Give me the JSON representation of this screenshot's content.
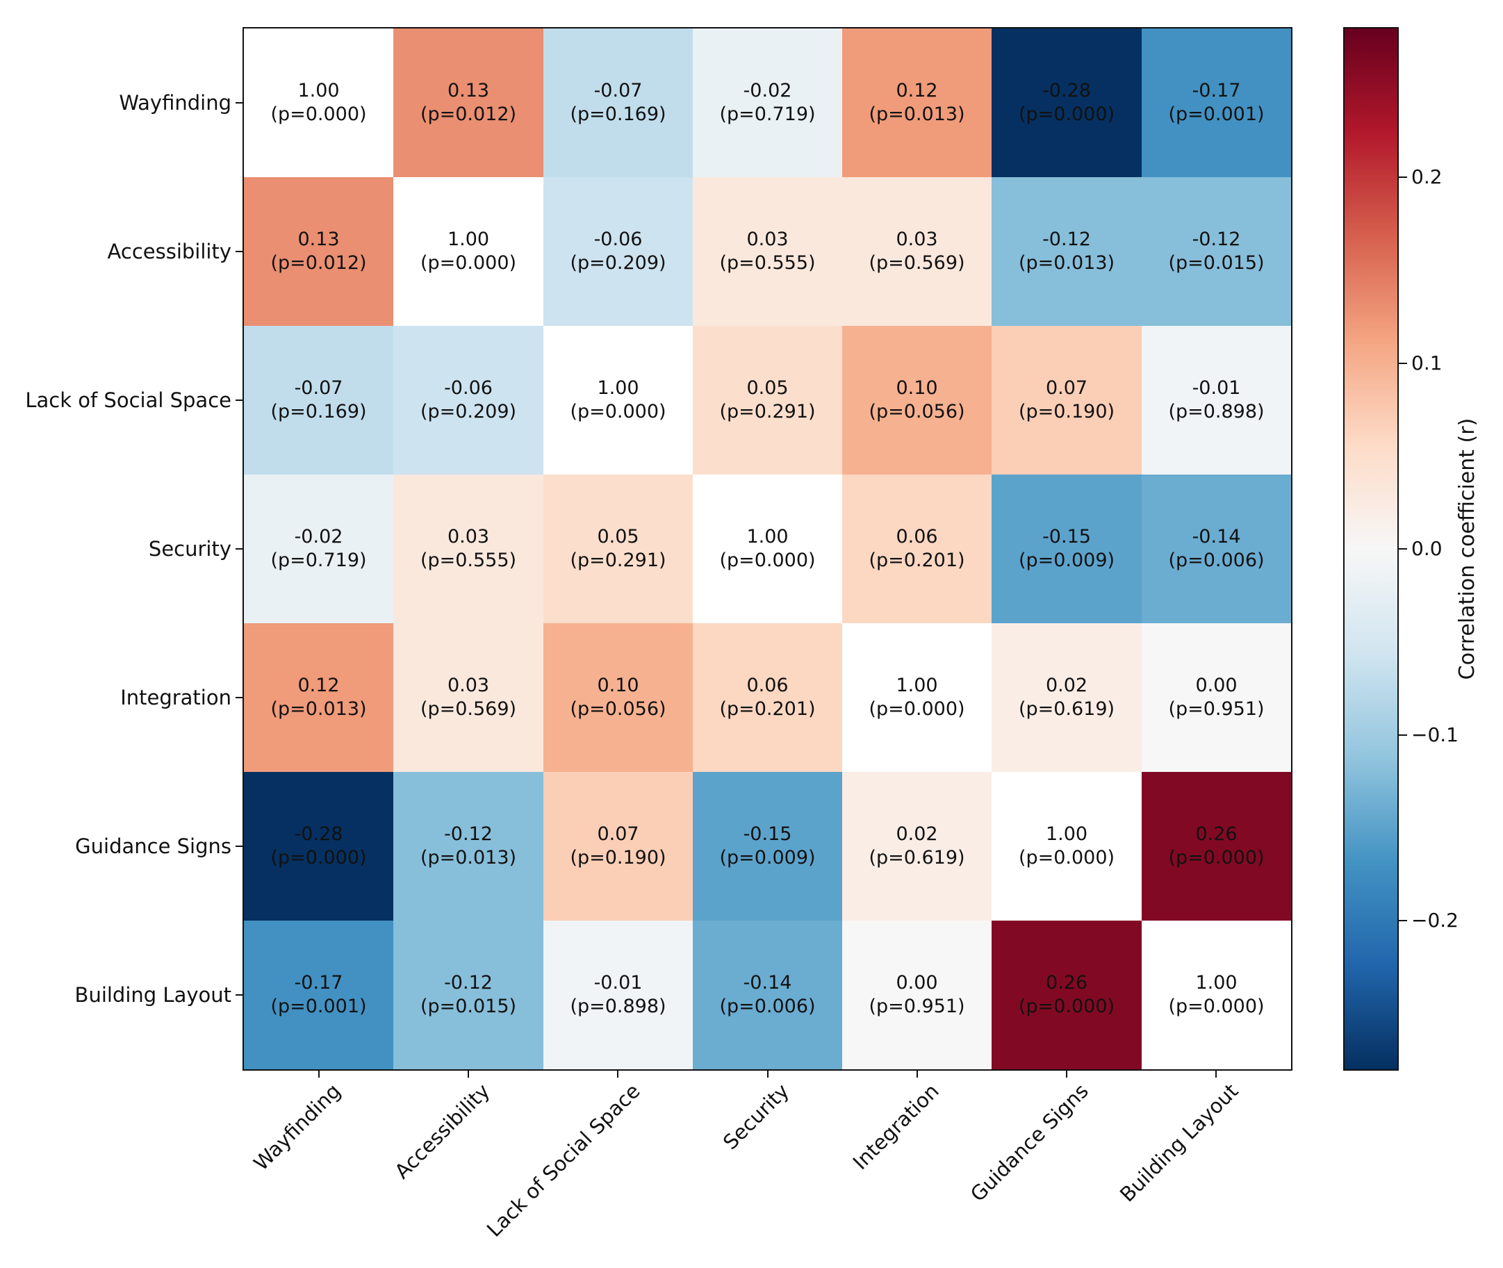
{
  "chart_data": {
    "type": "heatmap",
    "title": "",
    "variables": [
      "Wayfinding",
      "Accessibility",
      "Lack of Social Space",
      "Security",
      "Integration",
      "Guidance Signs",
      "Building Layout"
    ],
    "r": [
      [
        1.0,
        0.13,
        -0.07,
        -0.02,
        0.12,
        -0.28,
        -0.17
      ],
      [
        0.13,
        1.0,
        -0.06,
        0.03,
        0.03,
        -0.12,
        -0.12
      ],
      [
        -0.07,
        -0.06,
        1.0,
        0.05,
        0.1,
        0.07,
        -0.01
      ],
      [
        -0.02,
        0.03,
        0.05,
        1.0,
        0.06,
        -0.15,
        -0.14
      ],
      [
        0.12,
        0.03,
        0.1,
        0.06,
        1.0,
        0.02,
        0.0
      ],
      [
        -0.28,
        -0.12,
        0.07,
        -0.15,
        0.02,
        1.0,
        0.26
      ],
      [
        -0.17,
        -0.12,
        -0.01,
        -0.14,
        0.0,
        0.26,
        1.0
      ]
    ],
    "p": [
      [
        "0.000",
        "0.012",
        "0.169",
        "0.719",
        "0.013",
        "0.000",
        "0.001"
      ],
      [
        "0.012",
        "0.000",
        "0.209",
        "0.555",
        "0.569",
        "0.013",
        "0.015"
      ],
      [
        "0.169",
        "0.209",
        "0.000",
        "0.291",
        "0.056",
        "0.190",
        "0.898"
      ],
      [
        "0.719",
        "0.555",
        "0.291",
        "0.000",
        "0.201",
        "0.009",
        "0.006"
      ],
      [
        "0.013",
        "0.569",
        "0.056",
        "0.201",
        "0.000",
        "0.619",
        "0.951"
      ],
      [
        "0.000",
        "0.013",
        "0.190",
        "0.009",
        "0.619",
        "0.000",
        "0.000"
      ],
      [
        "0.001",
        "0.015",
        "0.898",
        "0.006",
        "0.951",
        "0.000",
        "0.000"
      ]
    ],
    "cell_text_format": "r then (p=value)",
    "colorbar": {
      "label": "Correlation coefficient (r)",
      "tick_labels": [
        "0.2",
        "0.1",
        "0.0",
        "−0.1",
        "−0.2"
      ],
      "tick_values": [
        0.2,
        0.1,
        0.0,
        -0.1,
        -0.2
      ],
      "vmin": -0.28,
      "vmax": 0.28
    },
    "colormap": {
      "name": "RdBu_r",
      "stops": [
        "#053061",
        "#2166ac",
        "#4393c3",
        "#92c5de",
        "#d1e5f0",
        "#f7f7f7",
        "#fddbc7",
        "#f4a582",
        "#d6604d",
        "#b2182b",
        "#67001f"
      ],
      "diagonal_color": "#ffffff"
    },
    "axes": {
      "x_tick_labels_rotation_deg": 45,
      "grid": false
    }
  }
}
